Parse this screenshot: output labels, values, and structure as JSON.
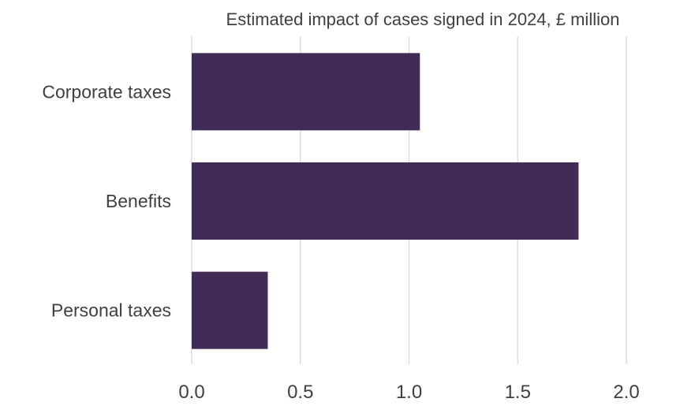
{
  "chart_data": {
    "type": "bar",
    "orientation": "horizontal",
    "title": "Estimated impact of cases signed in 2024, £ million",
    "categories": [
      "Corporate taxes",
      "Benefits",
      "Personal taxes"
    ],
    "values": [
      1.05,
      1.78,
      0.35
    ],
    "x_ticks": [
      "0.0",
      "0.5",
      "1.0",
      "1.5",
      "2.0"
    ],
    "xlim": [
      0,
      2.0
    ],
    "xlabel": "",
    "ylabel": "",
    "grid": true,
    "legend": "none",
    "colors": {
      "bar": "#412c55",
      "grid": "#d9d9d9",
      "text": "#3f3f3f"
    }
  }
}
